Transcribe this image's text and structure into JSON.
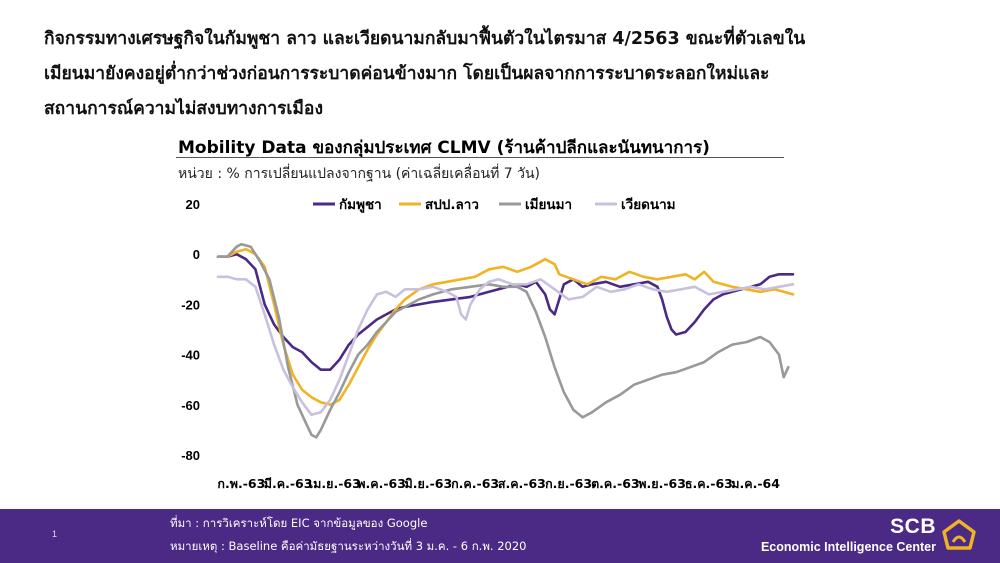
{
  "headline": [
    "กิจกรรมทางเศรษฐกิจในกัมพูชา ลาว และเวียดนามกลับมาฟื้นตัวในไตรมาส 4/2563 ขณะที่ตัวเลขใน",
    "เมียนมายังคงอยู่ต่ำกว่าช่วงก่อนการระบาดค่อนข้างมาก โดยเป็นผลจากการระบาดระลอกใหม่และ",
    "สถานการณ์ความไม่สงบทางการเมือง"
  ],
  "chart_data": {
    "type": "line",
    "title": "Mobility Data ของกลุ่มประเทศ CLMV (ร้านค้าปลีกและนันทนาการ)",
    "subtitle": "หน่วย : % การเปลี่ยนแปลงจากฐาน (ค่าเฉลี่ยเคลื่อนที่ 7 วัน)",
    "ylim": [
      -80,
      20
    ],
    "yticks": [
      "20",
      "0",
      "-20",
      "-40",
      "-60",
      "-80"
    ],
    "xlim": [
      0,
      12.3
    ],
    "xticks": [
      "ก.พ.-63",
      "มี.ค.-63",
      "เม.ย.-63",
      "พ.ค.-63",
      "มิ.ย.-63",
      "ก.ค.-63",
      "ส.ค.-63",
      "ก.ย.-63",
      "ต.ค.-63",
      "พ.ย.-63",
      "ธ.ค.-63",
      "ม.ค.-64"
    ],
    "grid": false,
    "legend_position": "top",
    "series": [
      {
        "name": "กัมพูชา",
        "color": "#4a2a84",
        "points": [
          [
            0,
            -1
          ],
          [
            0.2,
            -1
          ],
          [
            0.4,
            0
          ],
          [
            0.6,
            -2
          ],
          [
            0.8,
            -6
          ],
          [
            1.0,
            -20
          ],
          [
            1.2,
            -28
          ],
          [
            1.4,
            -33
          ],
          [
            1.6,
            -37
          ],
          [
            1.8,
            -39
          ],
          [
            2.0,
            -43
          ],
          [
            2.2,
            -46
          ],
          [
            2.4,
            -46
          ],
          [
            2.6,
            -42
          ],
          [
            2.8,
            -36
          ],
          [
            3.0,
            -32
          ],
          [
            3.2,
            -29
          ],
          [
            3.4,
            -26
          ],
          [
            3.6,
            -24
          ],
          [
            3.8,
            -22
          ],
          [
            4.0,
            -21
          ],
          [
            4.3,
            -20
          ],
          [
            4.6,
            -19
          ],
          [
            5.0,
            -18
          ],
          [
            5.4,
            -17
          ],
          [
            5.8,
            -15
          ],
          [
            6.0,
            -14
          ],
          [
            6.2,
            -13
          ],
          [
            6.4,
            -12
          ],
          [
            6.6,
            -13
          ],
          [
            6.8,
            -11
          ],
          [
            7.0,
            -16
          ],
          [
            7.1,
            -22
          ],
          [
            7.2,
            -24
          ],
          [
            7.4,
            -12
          ],
          [
            7.6,
            -10
          ],
          [
            7.8,
            -13
          ],
          [
            8.0,
            -12
          ],
          [
            8.3,
            -11
          ],
          [
            8.6,
            -13
          ],
          [
            8.9,
            -12
          ],
          [
            9.2,
            -11
          ],
          [
            9.4,
            -13
          ],
          [
            9.5,
            -18
          ],
          [
            9.6,
            -25
          ],
          [
            9.7,
            -30
          ],
          [
            9.8,
            -32
          ],
          [
            10.0,
            -31
          ],
          [
            10.2,
            -27
          ],
          [
            10.4,
            -22
          ],
          [
            10.6,
            -18
          ],
          [
            10.8,
            -16
          ],
          [
            11.0,
            -15
          ],
          [
            11.2,
            -14
          ],
          [
            11.4,
            -13
          ],
          [
            11.6,
            -12
          ],
          [
            11.8,
            -9
          ],
          [
            12.0,
            -8
          ],
          [
            12.3,
            -8
          ]
        ]
      },
      {
        "name": "สปป.ลาว",
        "color": "#f0b323",
        "points": [
          [
            0,
            -1
          ],
          [
            0.2,
            -1
          ],
          [
            0.4,
            1
          ],
          [
            0.6,
            2
          ],
          [
            0.8,
            0
          ],
          [
            1.0,
            -5
          ],
          [
            1.2,
            -20
          ],
          [
            1.4,
            -36
          ],
          [
            1.6,
            -48
          ],
          [
            1.8,
            -54
          ],
          [
            2.0,
            -57
          ],
          [
            2.2,
            -59
          ],
          [
            2.4,
            -60
          ],
          [
            2.6,
            -58
          ],
          [
            2.8,
            -52
          ],
          [
            3.0,
            -45
          ],
          [
            3.2,
            -38
          ],
          [
            3.4,
            -32
          ],
          [
            3.6,
            -27
          ],
          [
            3.8,
            -22
          ],
          [
            4.0,
            -18
          ],
          [
            4.3,
            -14
          ],
          [
            4.6,
            -12
          ],
          [
            4.9,
            -11
          ],
          [
            5.2,
            -10
          ],
          [
            5.5,
            -9
          ],
          [
            5.8,
            -6
          ],
          [
            6.1,
            -5
          ],
          [
            6.4,
            -7
          ],
          [
            6.7,
            -5
          ],
          [
            7.0,
            -2
          ],
          [
            7.2,
            -4
          ],
          [
            7.3,
            -8
          ],
          [
            7.6,
            -10
          ],
          [
            7.9,
            -12
          ],
          [
            8.2,
            -9
          ],
          [
            8.5,
            -10
          ],
          [
            8.8,
            -7
          ],
          [
            9.1,
            -9
          ],
          [
            9.4,
            -10
          ],
          [
            9.7,
            -9
          ],
          [
            10.0,
            -8
          ],
          [
            10.2,
            -10
          ],
          [
            10.4,
            -7
          ],
          [
            10.6,
            -11
          ],
          [
            10.8,
            -12
          ],
          [
            11.0,
            -13
          ],
          [
            11.3,
            -14
          ],
          [
            11.6,
            -15
          ],
          [
            11.9,
            -14
          ],
          [
            12.1,
            -15
          ],
          [
            12.3,
            -16
          ]
        ]
      },
      {
        "name": "เมียนมา",
        "color": "#999999",
        "points": [
          [
            0,
            -1
          ],
          [
            0.2,
            -1
          ],
          [
            0.4,
            3
          ],
          [
            0.5,
            4
          ],
          [
            0.7,
            3
          ],
          [
            0.9,
            -3
          ],
          [
            1.1,
            -10
          ],
          [
            1.3,
            -25
          ],
          [
            1.5,
            -45
          ],
          [
            1.7,
            -60
          ],
          [
            1.9,
            -68
          ],
          [
            2.0,
            -72
          ],
          [
            2.1,
            -73
          ],
          [
            2.2,
            -70
          ],
          [
            2.4,
            -62
          ],
          [
            2.6,
            -55
          ],
          [
            2.8,
            -47
          ],
          [
            3.0,
            -40
          ],
          [
            3.2,
            -36
          ],
          [
            3.4,
            -31
          ],
          [
            3.6,
            -27
          ],
          [
            3.8,
            -23
          ],
          [
            4.0,
            -21
          ],
          [
            4.3,
            -18
          ],
          [
            4.6,
            -16
          ],
          [
            5.0,
            -14
          ],
          [
            5.4,
            -13
          ],
          [
            5.8,
            -12
          ],
          [
            6.1,
            -13
          ],
          [
            6.4,
            -13
          ],
          [
            6.6,
            -15
          ],
          [
            6.8,
            -23
          ],
          [
            7.0,
            -33
          ],
          [
            7.2,
            -45
          ],
          [
            7.4,
            -55
          ],
          [
            7.6,
            -62
          ],
          [
            7.8,
            -65
          ],
          [
            8.0,
            -63
          ],
          [
            8.3,
            -59
          ],
          [
            8.6,
            -56
          ],
          [
            8.9,
            -52
          ],
          [
            9.2,
            -50
          ],
          [
            9.5,
            -48
          ],
          [
            9.8,
            -47
          ],
          [
            10.1,
            -45
          ],
          [
            10.4,
            -43
          ],
          [
            10.7,
            -39
          ],
          [
            11.0,
            -36
          ],
          [
            11.3,
            -35
          ],
          [
            11.6,
            -33
          ],
          [
            11.8,
            -35
          ],
          [
            12.0,
            -40
          ],
          [
            12.1,
            -49
          ],
          [
            12.2,
            -45
          ]
        ]
      },
      {
        "name": "เวียดนาม",
        "color": "#c9c0e0",
        "points": [
          [
            0,
            -9
          ],
          [
            0.2,
            -9
          ],
          [
            0.4,
            -10
          ],
          [
            0.6,
            -10
          ],
          [
            0.8,
            -13
          ],
          [
            1.0,
            -24
          ],
          [
            1.2,
            -36
          ],
          [
            1.4,
            -46
          ],
          [
            1.6,
            -53
          ],
          [
            1.8,
            -59
          ],
          [
            2.0,
            -64
          ],
          [
            2.2,
            -63
          ],
          [
            2.4,
            -58
          ],
          [
            2.6,
            -50
          ],
          [
            2.8,
            -40
          ],
          [
            3.0,
            -30
          ],
          [
            3.2,
            -22
          ],
          [
            3.4,
            -16
          ],
          [
            3.6,
            -15
          ],
          [
            3.8,
            -17
          ],
          [
            4.0,
            -14
          ],
          [
            4.3,
            -14
          ],
          [
            4.6,
            -13
          ],
          [
            4.9,
            -15
          ],
          [
            5.1,
            -17
          ],
          [
            5.2,
            -24
          ],
          [
            5.3,
            -26
          ],
          [
            5.4,
            -20
          ],
          [
            5.6,
            -14
          ],
          [
            5.8,
            -11
          ],
          [
            6.0,
            -10
          ],
          [
            6.3,
            -12
          ],
          [
            6.6,
            -12
          ],
          [
            6.9,
            -10
          ],
          [
            7.2,
            -14
          ],
          [
            7.5,
            -18
          ],
          [
            7.8,
            -17
          ],
          [
            8.1,
            -13
          ],
          [
            8.4,
            -15
          ],
          [
            8.7,
            -14
          ],
          [
            9.0,
            -12
          ],
          [
            9.3,
            -14
          ],
          [
            9.6,
            -15
          ],
          [
            9.9,
            -14
          ],
          [
            10.2,
            -13
          ],
          [
            10.5,
            -16
          ],
          [
            10.8,
            -15
          ],
          [
            11.1,
            -14
          ],
          [
            11.4,
            -13
          ],
          [
            11.7,
            -14
          ],
          [
            12.0,
            -13
          ],
          [
            12.3,
            -12
          ]
        ]
      }
    ]
  },
  "footer": {
    "page_number": "1",
    "source": "ที่มา : การวิเคราะห์โดย EIC จากข้อมูลของ Google",
    "note": "หมายเหตุ : Baseline คือค่ามัธยฐานระหว่างวันที่ 3 ม.ค. - 6 ก.พ. 2020",
    "brand_name": "SCB",
    "brand_sub": "Economic Intelligence Center",
    "background_color": "#4a2a84",
    "logo_icon": "scb-house-logo-icon"
  }
}
